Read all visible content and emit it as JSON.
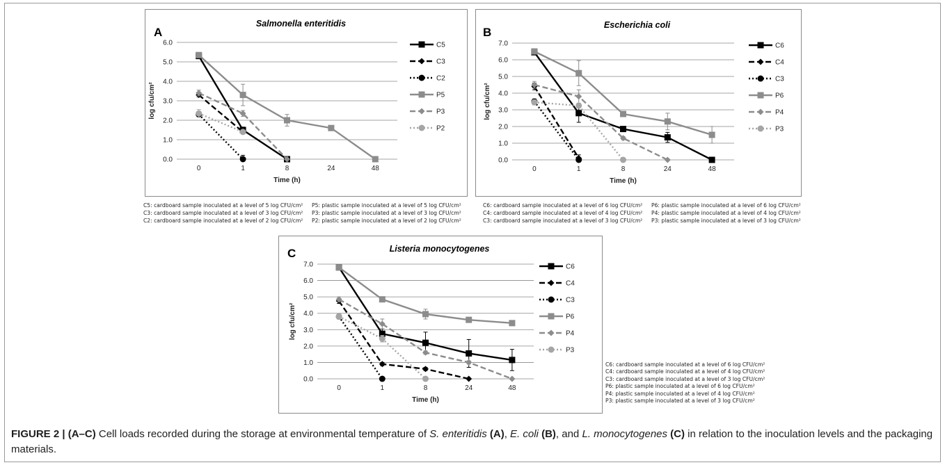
{
  "chart_data": [
    {
      "type": "line",
      "panel_letter": "A",
      "title": "Salmonella enteritidis",
      "xlabel": "Time (h)",
      "ylabel": "log cfu/cm²",
      "categories": [
        "0",
        "1",
        "8",
        "24",
        "48"
      ],
      "ylim": [
        0,
        6
      ],
      "yticks": [
        "0.0",
        "1.0",
        "2.0",
        "3.0",
        "4.0",
        "5.0",
        "6.0"
      ],
      "grid": true,
      "legend_position": "right",
      "series": [
        {
          "name": "C5",
          "values": [
            5.3,
            1.5,
            0.0,
            null,
            null
          ],
          "errors": [
            0.1,
            0.15,
            0,
            null,
            null
          ],
          "color": "#000000",
          "dash": "solid",
          "marker": "square"
        },
        {
          "name": "C3",
          "values": [
            3.3,
            1.4,
            null,
            null,
            null
          ],
          "errors": [
            0.1,
            0.1,
            null,
            null,
            null
          ],
          "color": "#000000",
          "dash": "dash",
          "marker": "diamond"
        },
        {
          "name": "C2",
          "values": [
            2.3,
            0.0,
            null,
            null,
            null
          ],
          "errors": [
            0.1,
            0.2,
            null,
            null,
            null
          ],
          "color": "#000000",
          "dash": "dot",
          "marker": "circle"
        },
        {
          "name": "P5",
          "values": [
            5.35,
            3.3,
            2.0,
            1.6,
            0.0
          ],
          "errors": [
            0.1,
            0.55,
            0.3,
            0.1,
            0
          ],
          "color": "#8c8c8c",
          "dash": "solid",
          "marker": "square"
        },
        {
          "name": "P3",
          "values": [
            3.4,
            2.35,
            0.0,
            null,
            null
          ],
          "errors": [
            0.15,
            0.15,
            0,
            null,
            null
          ],
          "color": "#8c8c8c",
          "dash": "dash",
          "marker": "diamond"
        },
        {
          "name": "P2",
          "values": [
            2.35,
            1.4,
            null,
            null,
            null
          ],
          "errors": [
            0.2,
            0.1,
            null,
            null,
            null
          ],
          "color": "#a5a5a5",
          "dash": "dot",
          "marker": "circle"
        }
      ]
    },
    {
      "type": "line",
      "panel_letter": "B",
      "title": "Escherichia coli",
      "xlabel": "Time (h)",
      "ylabel": "log cfu/cm²",
      "categories": [
        "0",
        "1",
        "8",
        "24",
        "48"
      ],
      "ylim": [
        0,
        7
      ],
      "yticks": [
        "0.0",
        "1.0",
        "2.0",
        "3.0",
        "4.0",
        "5.0",
        "6.0",
        "7.0"
      ],
      "grid": true,
      "legend_position": "right",
      "series": [
        {
          "name": "C6",
          "values": [
            6.45,
            2.8,
            1.85,
            1.35,
            0.0
          ],
          "errors": [
            0.15,
            0.55,
            0.15,
            0.3,
            0
          ],
          "color": "#000000",
          "dash": "solid",
          "marker": "square"
        },
        {
          "name": "C4",
          "values": [
            4.4,
            0.1,
            null,
            null,
            null
          ],
          "errors": [
            0.2,
            0.2,
            null,
            null,
            null
          ],
          "color": "#000000",
          "dash": "dash",
          "marker": "diamond"
        },
        {
          "name": "C3",
          "values": [
            3.5,
            0.0,
            null,
            null,
            null
          ],
          "errors": [
            0.15,
            0.1,
            null,
            null,
            null
          ],
          "color": "#000000",
          "dash": "dot",
          "marker": "circle"
        },
        {
          "name": "P6",
          "values": [
            6.5,
            5.2,
            2.75,
            2.3,
            1.5
          ],
          "errors": [
            0.15,
            0.75,
            0.1,
            0.5,
            0.5
          ],
          "color": "#8c8c8c",
          "dash": "solid",
          "marker": "square"
        },
        {
          "name": "P4",
          "values": [
            4.5,
            3.8,
            1.3,
            0.0,
            null
          ],
          "errors": [
            0.2,
            0.4,
            0.1,
            0,
            null
          ],
          "color": "#8c8c8c",
          "dash": "dash",
          "marker": "diamond"
        },
        {
          "name": "P3",
          "values": [
            3.45,
            3.25,
            0.0,
            null,
            null
          ],
          "errors": [
            0.15,
            0.1,
            0,
            null,
            null
          ],
          "color": "#a5a5a5",
          "dash": "dot",
          "marker": "circle"
        }
      ]
    },
    {
      "type": "line",
      "panel_letter": "C",
      "title": "Listeria monocytogenes",
      "xlabel": "Time (h)",
      "ylabel": "log cfu/cm²",
      "categories": [
        "0",
        "1",
        "8",
        "24",
        "48"
      ],
      "ylim": [
        0,
        7
      ],
      "yticks": [
        "0.0",
        "1.0",
        "2.0",
        "3.0",
        "4.0",
        "5.0",
        "6.0",
        "7.0"
      ],
      "grid": true,
      "legend_position": "right",
      "series": [
        {
          "name": "C6",
          "values": [
            6.8,
            2.75,
            2.2,
            1.55,
            1.15
          ],
          "errors": [
            0.1,
            0.3,
            0.65,
            0.85,
            0.65
          ],
          "color": "#000000",
          "dash": "solid",
          "marker": "square"
        },
        {
          "name": "C4",
          "values": [
            4.75,
            0.9,
            0.6,
            0.0,
            null
          ],
          "errors": [
            0.15,
            0.1,
            0.1,
            0,
            null
          ],
          "color": "#000000",
          "dash": "dash",
          "marker": "diamond"
        },
        {
          "name": "C3",
          "values": [
            3.8,
            0.0,
            null,
            null,
            null
          ],
          "errors": [
            0.15,
            0.1,
            null,
            null,
            null
          ],
          "color": "#000000",
          "dash": "dot",
          "marker": "circle"
        },
        {
          "name": "P6",
          "values": [
            6.8,
            4.85,
            3.95,
            3.6,
            3.4
          ],
          "errors": [
            0.1,
            0.1,
            0.3,
            0.1,
            0.15
          ],
          "color": "#8c8c8c",
          "dash": "solid",
          "marker": "square"
        },
        {
          "name": "P4",
          "values": [
            4.85,
            3.35,
            1.6,
            1.0,
            0.0
          ],
          "errors": [
            0.15,
            0.3,
            0.1,
            0.1,
            0
          ],
          "color": "#8c8c8c",
          "dash": "dash",
          "marker": "diamond"
        },
        {
          "name": "P3",
          "values": [
            3.8,
            2.45,
            0.0,
            null,
            null
          ],
          "errors": [
            0.15,
            0.2,
            0,
            null,
            null
          ],
          "color": "#a5a5a5",
          "dash": "dot",
          "marker": "circle"
        }
      ]
    }
  ],
  "notes": {
    "a_left": [
      "C5: cardboard sample inoculated at a level of 5 log CFU/cm²",
      "C3: cardboard sample inoculated at a level of 3 log CFU/cm²",
      "C2: cardboard sample inoculated at a level of 2 log CFU/cm²"
    ],
    "a_right": [
      "P5: plastic sample inoculated at a level of 5 log CFU/cm²",
      "P3: plastic sample inoculated at a level of 3 log CFU/cm²",
      "P2: plastic sample inoculated at a level of 2 log CFU/cm²"
    ],
    "b_left": [
      "C6: cardboard sample inoculated at a level of 6 log CFU/cm²",
      "C4: cardboard sample inoculated at a level of 4 log CFU/cm²",
      "C3: cardboard sample inoculated at a level of 3 log CFU/cm²"
    ],
    "b_right": [
      "P6: plastic sample inoculated at a level of 6 log CFU/cm²",
      "P4: plastic sample inoculated at a level of 4 log CFU/cm²",
      "P3: plastic sample inoculated at a level of 3 log CFU/cm²"
    ],
    "c": [
      "C6: cardboard sample inoculated at a level of 6 log CFU/cm²",
      "C4: cardboard sample inoculated at a level of 4 log CFU/cm²",
      "C3: cardboard sample inoculated at a level of 3 log CFU/cm²",
      "P6: plastic sample inoculated at a level of 6 log CFU/cm²",
      "P4: plastic sample inoculated at a level of 4 log CFU/cm²",
      "P3: plastic sample inoculated at a level of 3 log CFU/cm²"
    ]
  },
  "caption": {
    "label": "FIGURE 2 | (A–C)",
    "t1": " Cell loads recorded during the storage at environmental temperature of ",
    "sp1": "S. enteritidis",
    "l1": " (A)",
    "t2": ", ",
    "sp2": "E. coli",
    "l2": " (B)",
    "t3": ", and ",
    "sp3": "L. monocytogenes",
    "l3": " (C)",
    "t4": " in relation to the inoculation levels and the packaging materials."
  }
}
